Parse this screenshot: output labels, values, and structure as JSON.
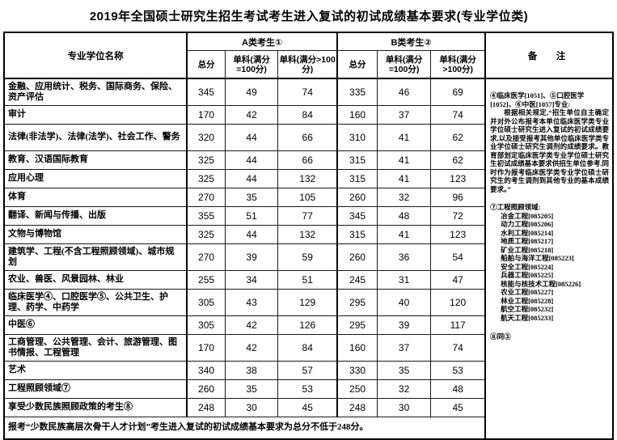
{
  "title": "2019年全国硕士研究生招生考试考生进入复试的初试成绩基本要求(专业学位类)",
  "table": {
    "headers": {
      "name": "专业学位名称",
      "group_a": "A类考生①",
      "group_b": "B类考生②",
      "total": "总分",
      "single_100": "单科(满分=100分)",
      "single_gt100": "单科(满分>100分)",
      "remarks": "备　注"
    },
    "rows": [
      {
        "name": "金融、应用统计、税务、国际商务、保险、资产评估",
        "tall": true,
        "a": [
          "345",
          "49",
          "74"
        ],
        "b": [
          "335",
          "46",
          "69"
        ]
      },
      {
        "name": "审计",
        "tall": false,
        "a": [
          "170",
          "42",
          "84"
        ],
        "b": [
          "160",
          "37",
          "74"
        ]
      },
      {
        "name": "法律(非法学)、法律(法学)、社会工作、警务",
        "tall": true,
        "a": [
          "320",
          "44",
          "66"
        ],
        "b": [
          "310",
          "41",
          "62"
        ]
      },
      {
        "name": "教育、汉语国际教育",
        "tall": false,
        "a": [
          "325",
          "44",
          "66"
        ],
        "b": [
          "315",
          "41",
          "62"
        ]
      },
      {
        "name": "应用心理",
        "tall": false,
        "a": [
          "325",
          "44",
          "132"
        ],
        "b": [
          "315",
          "41",
          "123"
        ]
      },
      {
        "name": "体育",
        "tall": false,
        "a": [
          "270",
          "35",
          "105"
        ],
        "b": [
          "260",
          "32",
          "96"
        ]
      },
      {
        "name": "翻译、新闻与传播、出版",
        "tall": false,
        "a": [
          "355",
          "51",
          "77"
        ],
        "b": [
          "345",
          "48",
          "72"
        ]
      },
      {
        "name": "文物与博物馆",
        "tall": false,
        "a": [
          "325",
          "44",
          "132"
        ],
        "b": [
          "315",
          "41",
          "123"
        ]
      },
      {
        "name": "建筑学、工程(不含工程照顾领域)、城市规划",
        "tall": true,
        "a": [
          "270",
          "39",
          "59"
        ],
        "b": [
          "260",
          "36",
          "54"
        ]
      },
      {
        "name": "农业、兽医、风景园林、林业",
        "tall": false,
        "a": [
          "255",
          "34",
          "51"
        ],
        "b": [
          "245",
          "31",
          "47"
        ]
      },
      {
        "name": "临床医学④、口腔医学⑤、公共卫生、护理、药学、中药学",
        "tall": true,
        "a": [
          "305",
          "43",
          "129"
        ],
        "b": [
          "295",
          "40",
          "120"
        ]
      },
      {
        "name": "中医⑥",
        "tall": false,
        "a": [
          "305",
          "42",
          "126"
        ],
        "b": [
          "295",
          "39",
          "117"
        ]
      },
      {
        "name": "工商管理、公共管理、会计、旅游管理、图书情报、工程管理",
        "tall": true,
        "a": [
          "170",
          "42",
          "84"
        ],
        "b": [
          "160",
          "37",
          "74"
        ]
      },
      {
        "name": "艺术",
        "tall": false,
        "a": [
          "340",
          "38",
          "57"
        ],
        "b": [
          "330",
          "35",
          "53"
        ]
      },
      {
        "name": "工程照顾领域⑦",
        "tall": false,
        "a": [
          "260",
          "35",
          "53"
        ],
        "b": [
          "250",
          "32",
          "48"
        ]
      },
      {
        "name": "享受少数民族照顾政策的考生⑧",
        "tall": false,
        "a": [
          "248",
          "30",
          "45"
        ],
        "b": [
          "248",
          "30",
          "45"
        ]
      }
    ],
    "footer": "报考“少数民族高层次骨干人才计划”考生进入复试的初试成绩基本要求为总分不低于248分。"
  },
  "remarks": {
    "medical_title": "④临床医学[1051]、⑤口腔医学[1052]、⑥中医[1057]专业:",
    "medical_body": "根据相关规定,“招生单位自主确定并对外公布报考本单位临床医学类专业学位硕士研究生进入复试的初试成绩要求,以及接受报考其他单位临床医学类专业学位硕士研究生调剂的成绩要求。教育部划定临床医学类专业学位硕士研究生初试成绩基本要求供招生单位参考,同时作为报考临床医学类专业学位硕士研究生的考生调剂到其他专业的基本成绩要求。”",
    "engineering_title": "⑦工程照顾领域:",
    "engineering_fields": [
      "冶金工程[085205]",
      "动力工程[085206]",
      "水利工程[085214]",
      "地质工程[085217]",
      "矿业工程[085218]",
      "船舶与海洋工程[085223]",
      "安全工程[085224]",
      "兵器工程[085225]",
      "核能与核技术工程[085226]",
      "农业工程[085227]",
      "林业工程[085228]",
      "航空工程[085232]",
      "航天工程[085233]"
    ],
    "same_as_note": "⑧同③"
  }
}
